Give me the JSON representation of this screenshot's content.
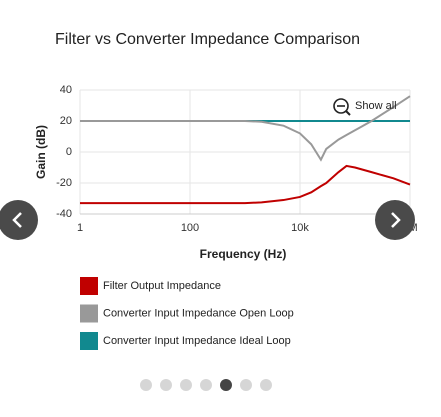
{
  "chart_data": {
    "type": "line",
    "title": "Filter vs Converter Impedance Comparison",
    "x_label": "Frequency (Hz)",
    "y_label": "Gain (dB)",
    "x": [
      1,
      10,
      100,
      1000,
      2000,
      5000,
      10000,
      16000,
      24000,
      30000,
      50000,
      70000,
      100000,
      200000,
      500000,
      1000000
    ],
    "series": [
      {
        "name": "Filter Output Impedance",
        "color": "#c00000",
        "values": [
          -33,
          -33,
          -33,
          -33,
          -32.5,
          -31,
          -29,
          -26,
          -22,
          -20,
          -13,
          -9,
          -10,
          -13,
          -17,
          -21
        ]
      },
      {
        "name": "Converter Input Impedance Open Loop",
        "color": "#999999",
        "values": [
          20,
          20,
          20,
          20,
          19.5,
          17,
          12,
          5,
          -5,
          2,
          8,
          11,
          14,
          20,
          29,
          36
        ]
      },
      {
        "name": "Converter Input Impedance Ideal Loop",
        "color": "#11898f",
        "values": [
          20,
          20,
          20,
          20,
          20,
          20,
          20,
          20,
          20,
          20,
          20,
          20,
          20,
          20,
          20,
          20
        ]
      }
    ],
    "xscale": "log",
    "xlim": [
      1,
      1000000
    ],
    "xticks": [
      1,
      100,
      {
        "value": 10000,
        "label": "10k"
      },
      {
        "value": 1000000,
        "label": "1M"
      }
    ],
    "ylim": [
      -40,
      40
    ],
    "yticks": [
      -40,
      -20,
      0,
      20,
      40
    ],
    "grid": true
  },
  "controls": {
    "reset_zoom": "Show all"
  }
}
